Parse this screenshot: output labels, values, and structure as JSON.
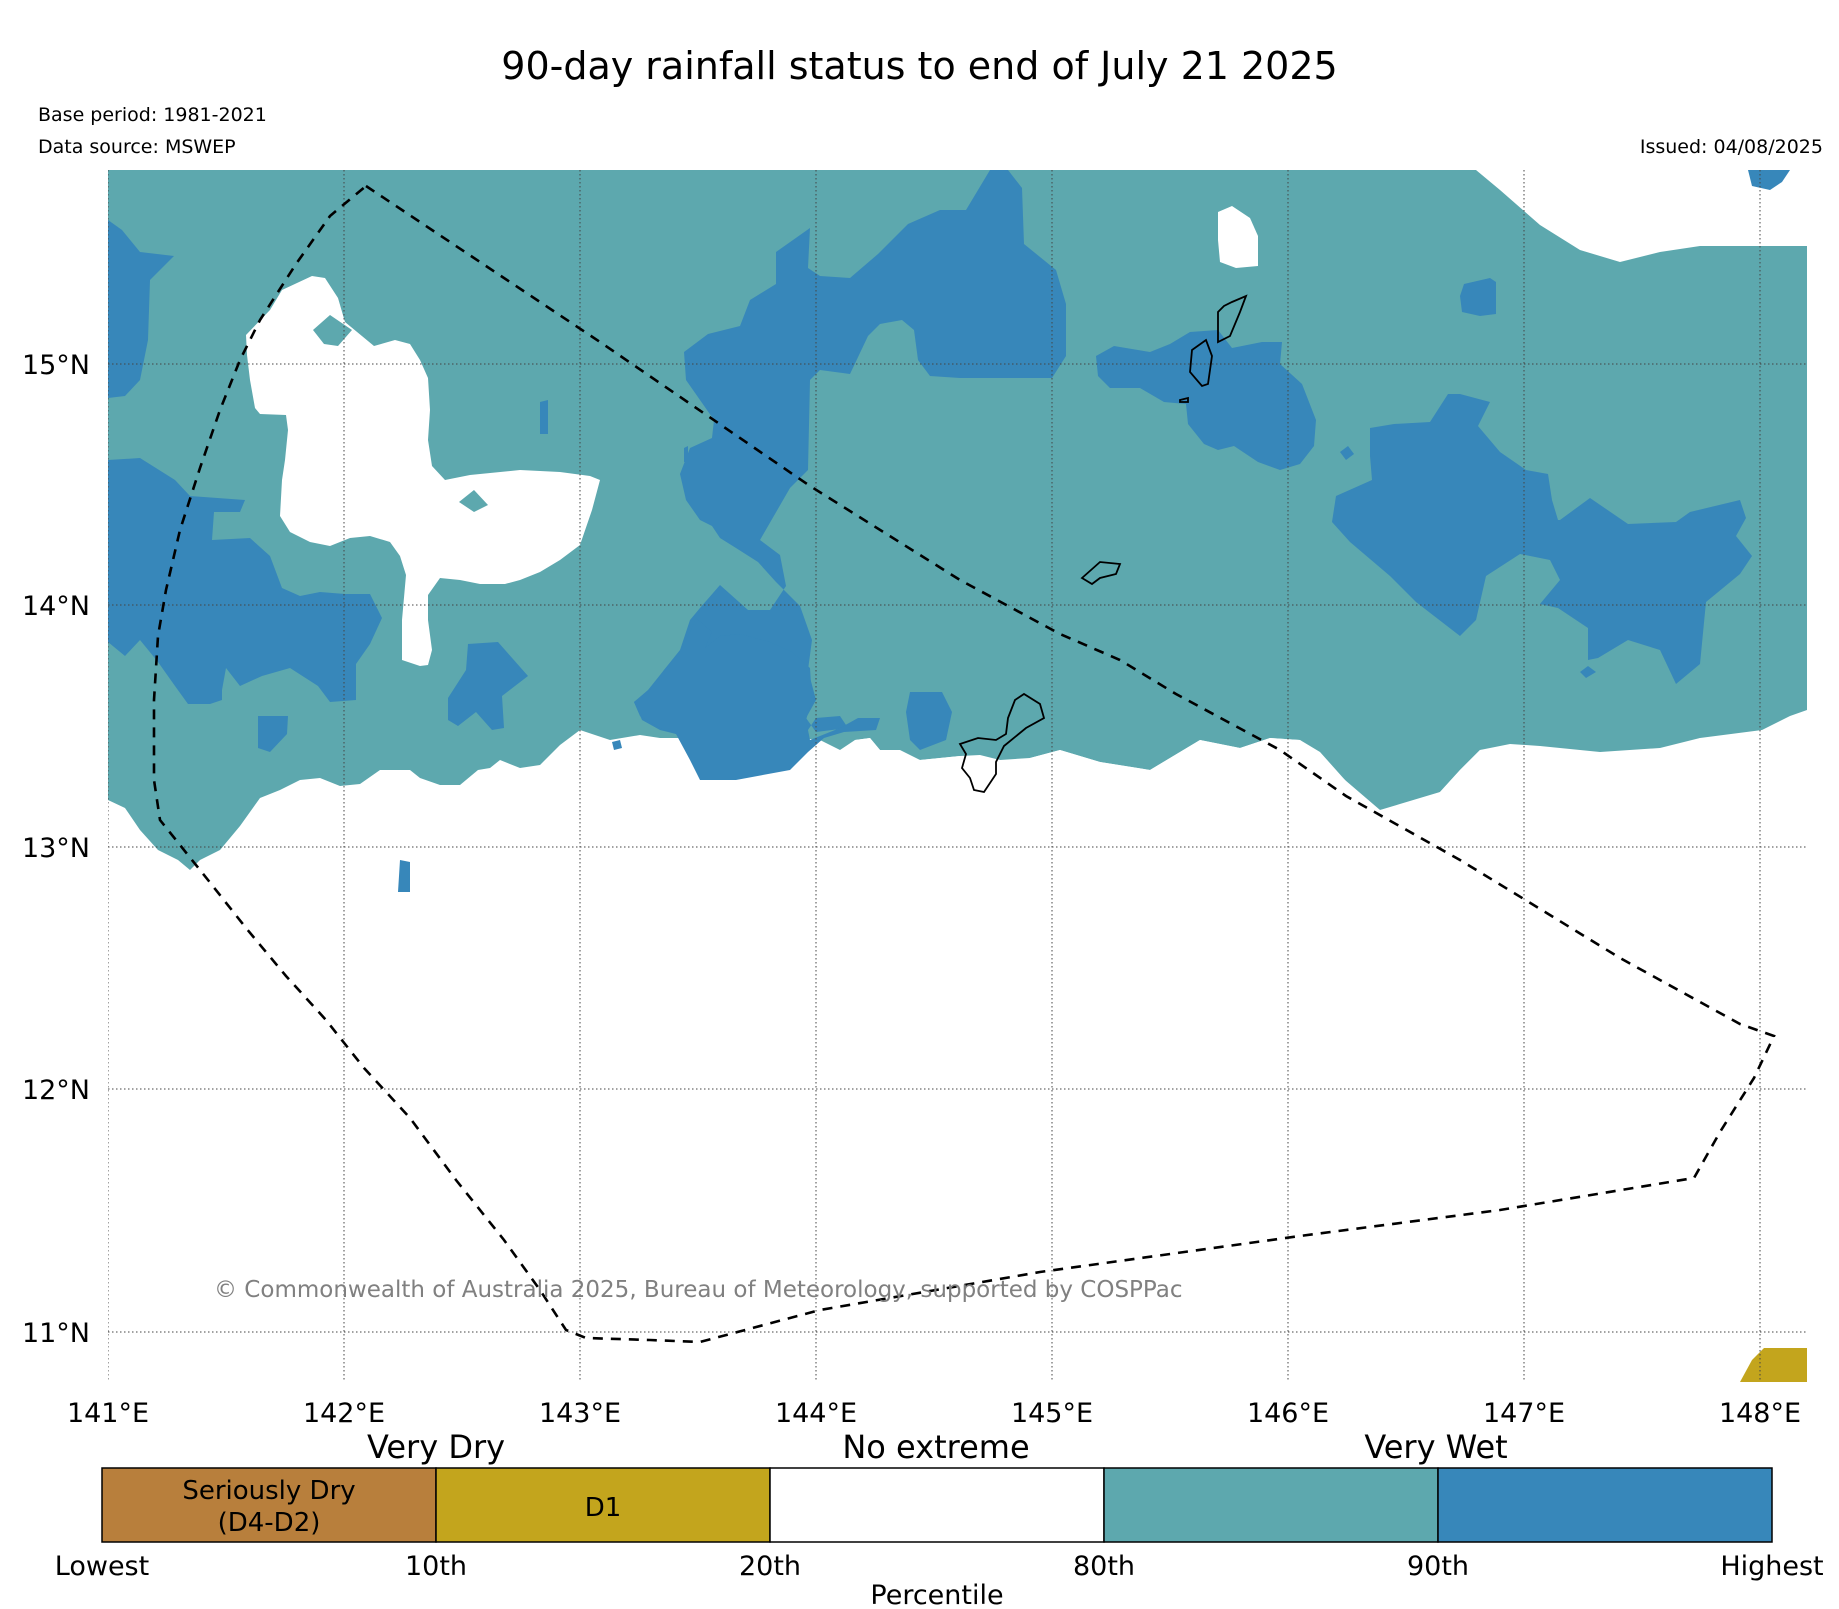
{
  "title": "90-day rainfall status to end of July 21 2025",
  "base_period": "Base period: 1981-2021",
  "data_source": "Data source: MSWEP",
  "issued": "Issued: 04/08/2025",
  "copyright": "© Commonwealth of Australia 2025, Bureau of Meteorology, supported by COSPPac",
  "map": {
    "lon_labels": [
      "141°E",
      "142°E",
      "143°E",
      "144°E",
      "145°E",
      "146°E",
      "147°E",
      "148°E"
    ],
    "lat_labels": [
      "15°N",
      "14°N",
      "13°N",
      "12°N",
      "11°N"
    ],
    "extent": {
      "lon": [
        141.0,
        148.2
      ],
      "lat": [
        10.85,
        15.8
      ]
    }
  },
  "legend": {
    "headers": [
      "Very Dry",
      "No extreme",
      "Very Wet"
    ],
    "categories": [
      {
        "label": "Seriously Dry\n(D4-D2)",
        "color": "#b87f3c"
      },
      {
        "label": "D1",
        "color": "#c3a51d"
      },
      {
        "label": "",
        "color": "#ffffff"
      },
      {
        "label": "",
        "color": "#5da8ae"
      },
      {
        "label": "",
        "color": "#3787ba"
      }
    ],
    "ticks": [
      "Lowest",
      "10th",
      "20th",
      "80th",
      "90th",
      "Highest"
    ],
    "axis_label": "Percentile"
  },
  "colors": {
    "very_wet_80_90": "#5da8ae",
    "very_wet_90_plus": "#3787ba",
    "d1": "#c3a51d",
    "seriously_dry": "#b87f3c"
  }
}
